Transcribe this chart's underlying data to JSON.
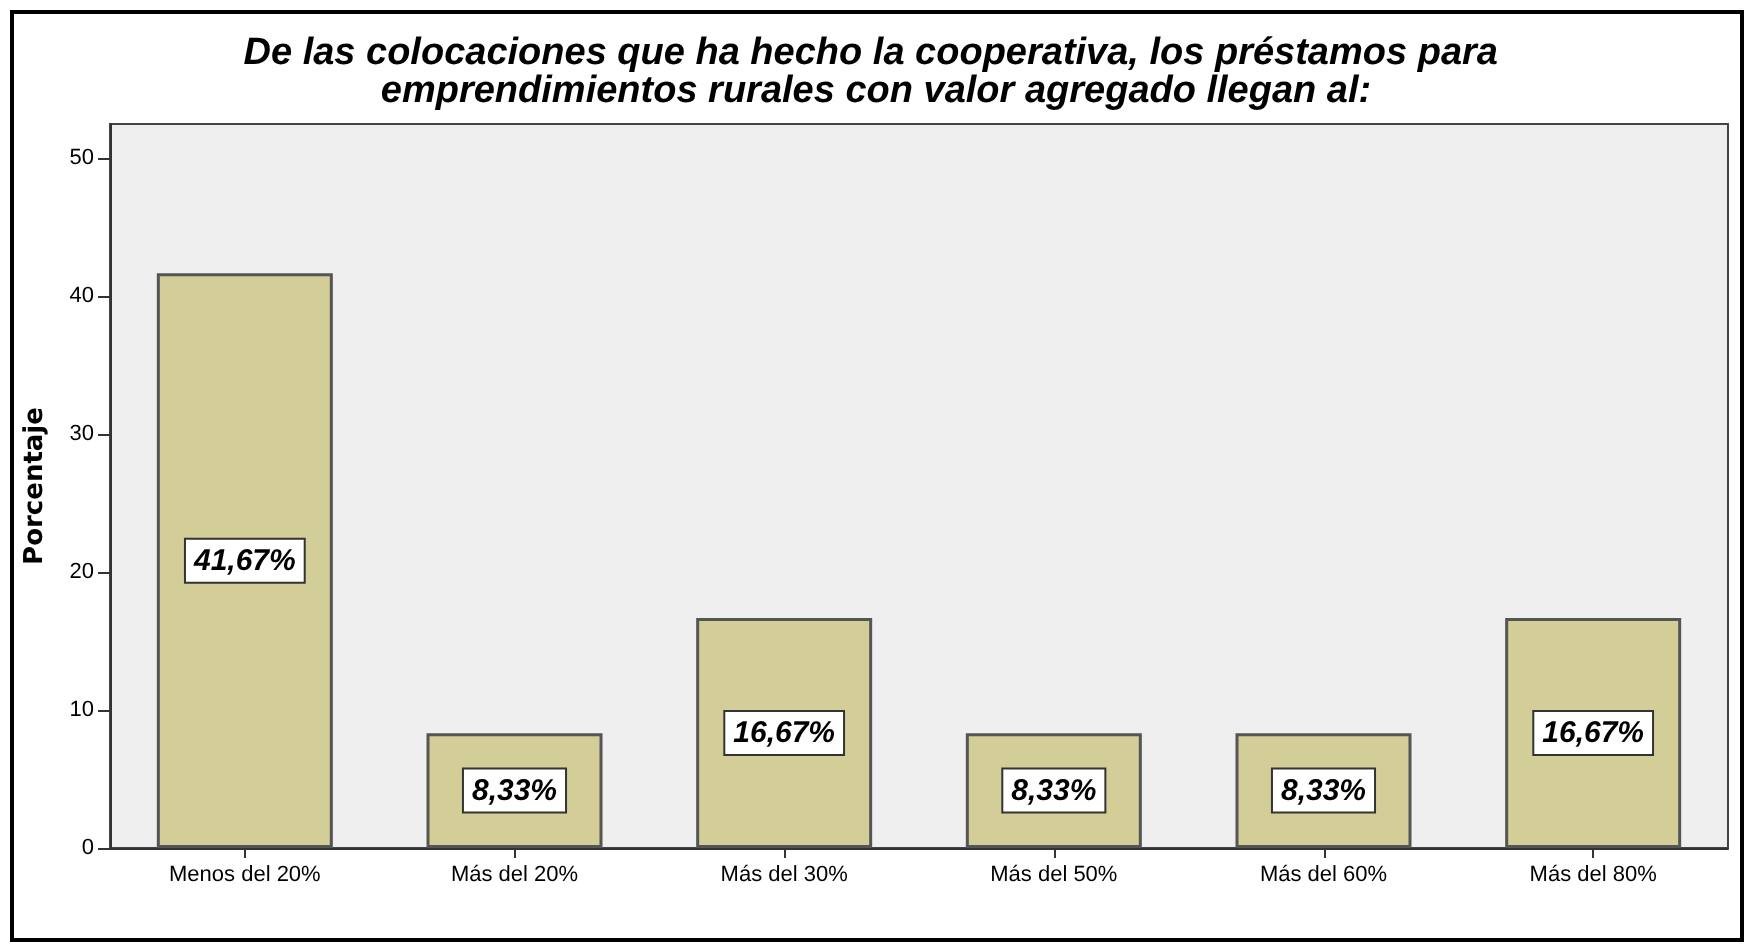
{
  "chart_data": {
    "type": "bar",
    "title": "De las colocaciones que ha hecho la cooperativa, los préstamos para emprendimientos rurales con valor agregado llegan al:",
    "ylabel": "Porcentaje",
    "categories": [
      "Menos del 20%",
      "Más del 20%",
      "Más del 30%",
      "Más del 50%",
      "Más del 60%",
      "Más del 80%"
    ],
    "values": [
      41.67,
      8.33,
      16.67,
      8.33,
      8.33,
      16.67
    ],
    "value_labels": [
      "41,67%",
      "8,33%",
      "16,67%",
      "8,33%",
      "8,33%",
      "16,67%"
    ],
    "color": "#d3cd97",
    "ylim": [
      0,
      52.5
    ],
    "yticks": [
      0,
      10,
      20,
      30,
      40,
      50
    ],
    "grid": false
  }
}
